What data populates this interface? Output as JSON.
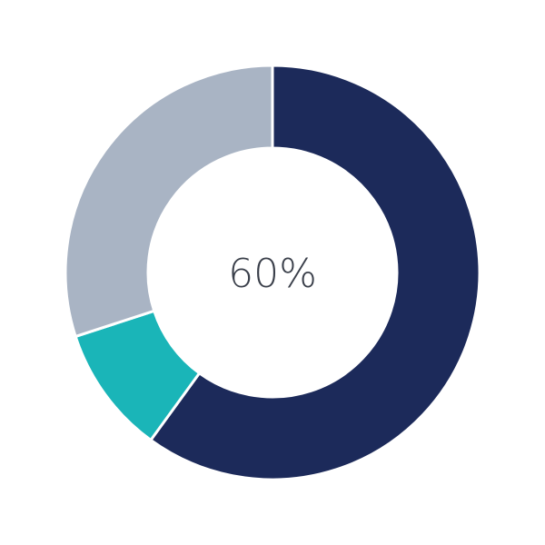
{
  "chart_data": {
    "type": "pie",
    "variant": "donut",
    "center_label": "60%",
    "slices": [
      {
        "value": 60,
        "color": "#1c2a5a"
      },
      {
        "value": 10,
        "color": "#1ab5b8"
      },
      {
        "value": 30,
        "color": "#a9b4c4"
      }
    ],
    "start": "top",
    "direction": "clockwise",
    "legend": "none"
  }
}
